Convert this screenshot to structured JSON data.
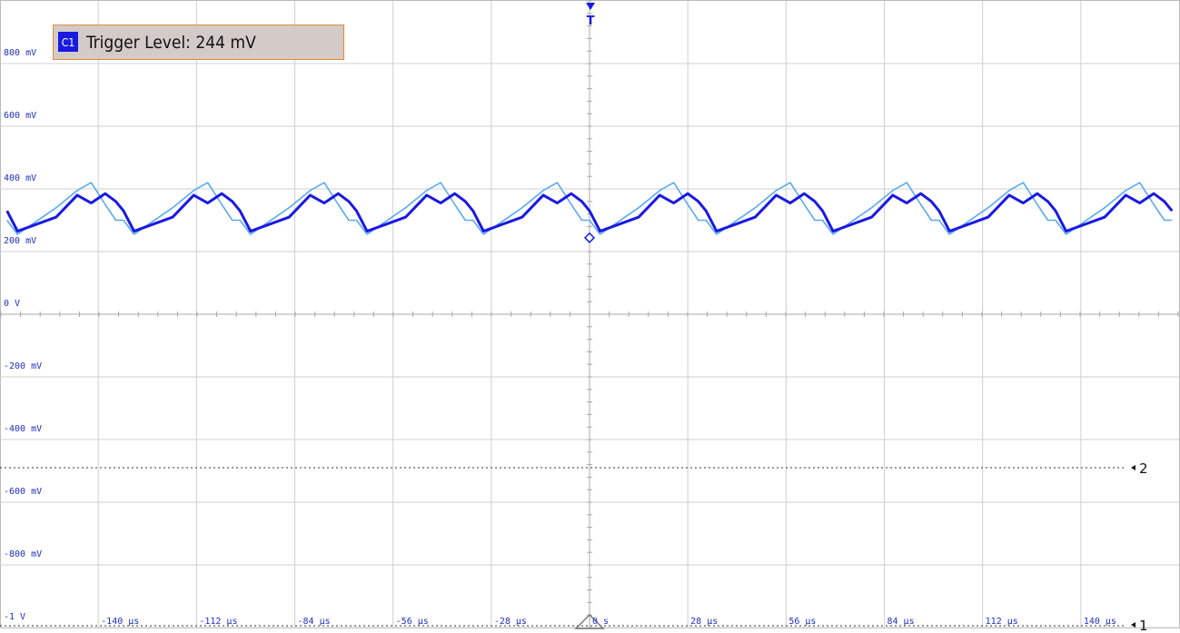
{
  "chart_data": {
    "type": "line",
    "trigger_badge": "C1",
    "trigger_text": "Trigger Level: 244 mV",
    "trigger_level": 244,
    "trigger_marker": "T",
    "channel_markers": [
      "2",
      "1"
    ],
    "xlim": [
      -168,
      168
    ],
    "ylim": [
      -1000,
      1000
    ],
    "xticks": [
      {
        "value": -140,
        "label": "-140 µs"
      },
      {
        "value": -112,
        "label": "-112 µs"
      },
      {
        "value": -84,
        "label": "-84 µs"
      },
      {
        "value": -56,
        "label": "-56 µs"
      },
      {
        "value": -28,
        "label": "-28 µs"
      },
      {
        "value": 0,
        "label": "0 s"
      },
      {
        "value": 28,
        "label": "28 µs"
      },
      {
        "value": 56,
        "label": "56 µs"
      },
      {
        "value": 84,
        "label": "84 µs"
      },
      {
        "value": 112,
        "label": "112 µs"
      },
      {
        "value": 140,
        "label": "140 µs"
      }
    ],
    "yticks": [
      {
        "value": 800,
        "label": "800 mV"
      },
      {
        "value": 600,
        "label": "600 mV"
      },
      {
        "value": 400,
        "label": "400 mV"
      },
      {
        "value": 200,
        "label": "200 mV"
      },
      {
        "value": 0,
        "label": "0 V"
      },
      {
        "value": -200,
        "label": "-200 mV"
      },
      {
        "value": -400,
        "label": "-400 mV"
      },
      {
        "value": -600,
        "label": "-600 mV"
      },
      {
        "value": -800,
        "label": "-800 mV"
      },
      {
        "value": -1000,
        "label": "-1 V"
      }
    ],
    "grid": true,
    "x": [
      -166,
      -163,
      -152,
      -146,
      -142,
      -138,
      -135,
      -132.8,
      -129.8,
      -118.8,
      -112.8,
      -108.8,
      -104.8,
      -101.8,
      -99.6,
      -96.6,
      -85.6,
      -79.6,
      -75.6,
      -71.6,
      -68.6,
      -66.4,
      -63.4,
      -52.4,
      -46.4,
      -42.4,
      -38.4,
      -35.4,
      -33.2,
      -30.2,
      -19.2,
      -13.2,
      -9.2,
      -5.2,
      -2.2,
      0,
      3,
      14,
      20,
      24,
      28,
      31,
      33.2,
      36.2,
      47.2,
      53.2,
      57.2,
      61.2,
      64.2,
      66.4,
      69.4,
      80.4,
      86.4,
      90.4,
      94.4,
      97.4,
      99.6,
      102.6,
      113.6,
      119.6,
      123.6,
      127.6,
      130.6,
      132.8,
      135.8,
      146.8,
      152.8,
      156.8,
      160.8,
      163.8,
      166
    ],
    "series": [
      {
        "color": "#5aaaf0",
        "values": [
          300,
          255,
          340,
          395,
          420,
          350,
          300,
          300,
          255,
          340,
          395,
          420,
          350,
          300,
          300,
          255,
          340,
          395,
          420,
          350,
          300,
          300,
          255,
          340,
          395,
          420,
          350,
          300,
          300,
          255,
          340,
          395,
          420,
          350,
          300,
          300,
          255,
          340,
          395,
          420,
          350,
          300,
          300,
          255,
          340,
          395,
          420,
          350,
          300,
          300,
          255,
          340,
          395,
          420,
          350,
          300,
          300,
          255,
          340,
          395,
          420,
          350,
          300,
          300,
          255,
          340,
          395,
          420,
          350,
          300,
          300
        ]
      },
      {
        "color": "#1a1ae0",
        "values": [
          330,
          265,
          310,
          380,
          355,
          385,
          360,
          330,
          265,
          310,
          380,
          355,
          385,
          360,
          330,
          265,
          310,
          380,
          355,
          385,
          360,
          330,
          265,
          310,
          380,
          355,
          385,
          360,
          330,
          265,
          310,
          380,
          355,
          385,
          360,
          330,
          265,
          310,
          380,
          355,
          385,
          360,
          330,
          265,
          310,
          380,
          355,
          385,
          360,
          330,
          265,
          310,
          380,
          355,
          385,
          360,
          330,
          265,
          310,
          380,
          355,
          385,
          360,
          330,
          265,
          310,
          380,
          355,
          385,
          360,
          330
        ]
      }
    ]
  }
}
